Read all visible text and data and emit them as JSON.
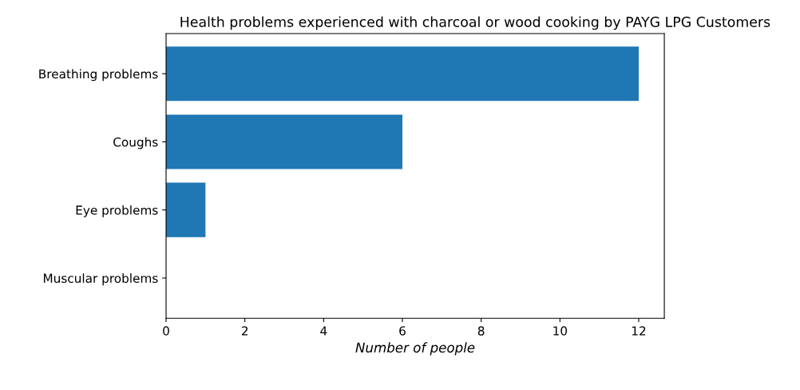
{
  "chart_data": {
    "type": "bar",
    "orientation": "horizontal",
    "title": "Health problems experienced with charcoal or wood cooking by PAYG LPG Customers",
    "xlabel": "Number of people",
    "categories": [
      "Breathing problems",
      "Coughs",
      "Eye problems",
      "Muscular problems"
    ],
    "values": [
      12,
      6,
      1,
      0
    ],
    "color": "#1f77b4",
    "xlim": [
      0,
      12.65
    ],
    "xticks": [
      0,
      2,
      4,
      6,
      8,
      10,
      12
    ],
    "grid": false,
    "legend": false
  }
}
